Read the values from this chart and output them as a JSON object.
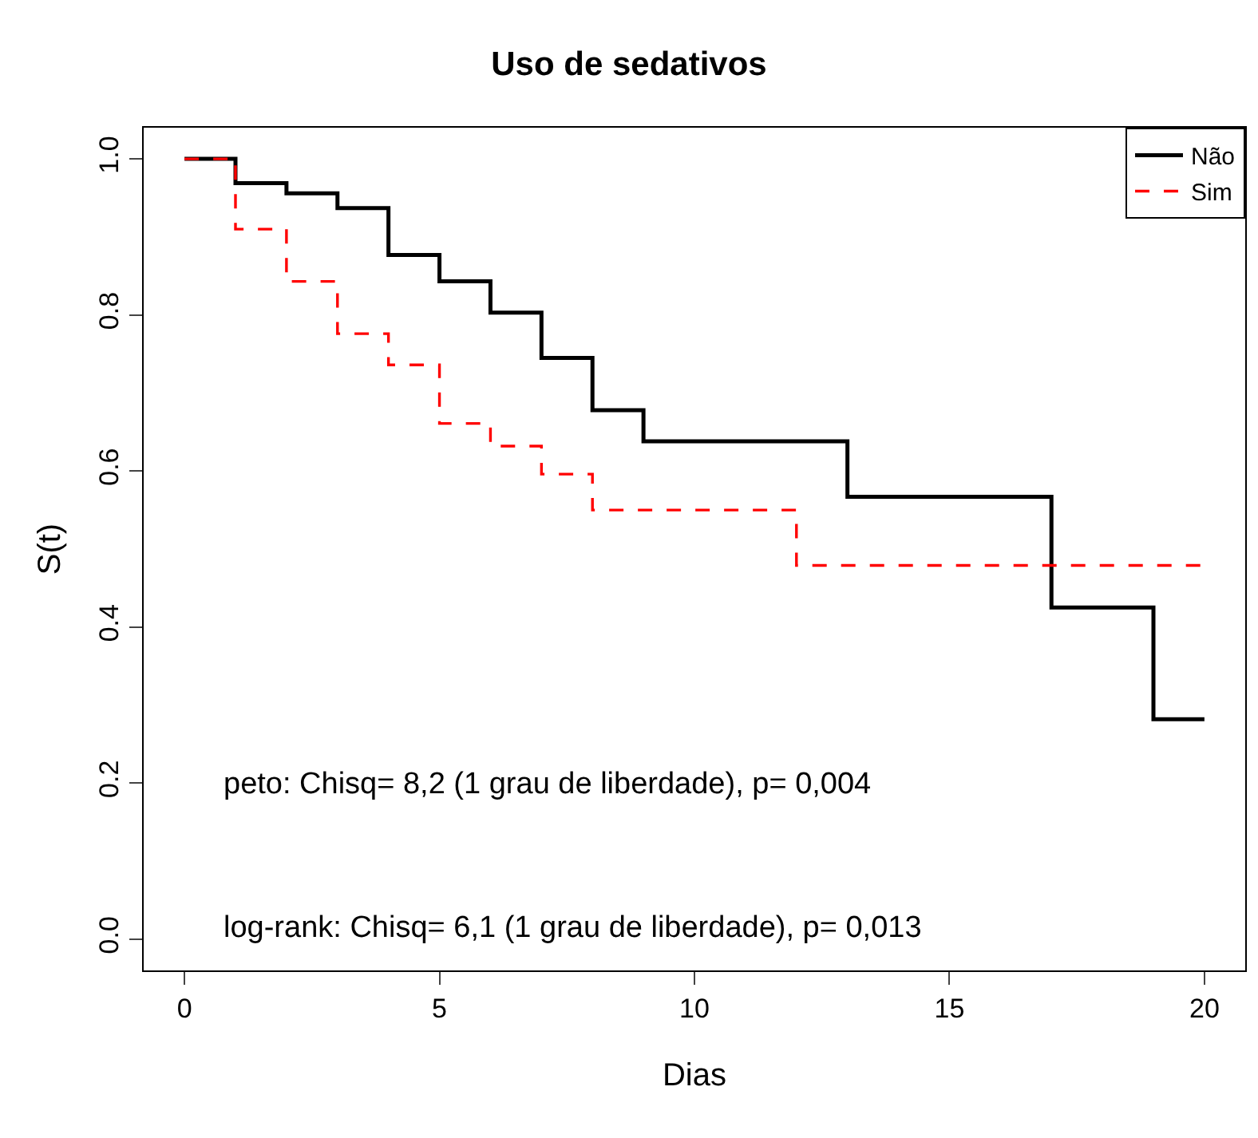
{
  "chart_data": {
    "type": "step",
    "title": "Uso de sedativos",
    "xlabel": "Dias",
    "ylabel": "S(t)",
    "xlim": [
      -0.8,
      20.8
    ],
    "xticks": [
      0,
      5,
      10,
      15,
      20
    ],
    "ylim": [
      -0.04,
      1.04
    ],
    "yticks": [
      {
        "value": 0,
        "label": "0.0"
      },
      0.2,
      0.4,
      0.6,
      0.8,
      {
        "value": 1,
        "label": "1.0"
      }
    ],
    "grid": false,
    "legend": "top right",
    "marker": "none",
    "annotations": [
      "peto: Chisq= 8,2 (1 grau de liberdade), p= 0,004",
      "log-rank: Chisq= 6,1 (1 grau de liberdade), p= 0,013"
    ],
    "series": [
      {
        "name": "Não",
        "color": "#000000",
        "line_style": "solid",
        "x": [
          0,
          1,
          2,
          3,
          4,
          5,
          6,
          7,
          8,
          9,
          13,
          17,
          19,
          20
        ],
        "values": [
          1.0,
          0.969,
          0.956,
          0.937,
          0.877,
          0.843,
          0.803,
          0.745,
          0.678,
          0.638,
          0.567,
          0.425,
          0.282,
          0.282
        ]
      },
      {
        "name": "Sim",
        "color": "#ff0000",
        "line_style": "dashed",
        "x": [
          0,
          1,
          2,
          3,
          4,
          5,
          6,
          7,
          8,
          12,
          20
        ],
        "values": [
          1.0,
          0.91,
          0.843,
          0.776,
          0.736,
          0.661,
          0.632,
          0.596,
          0.55,
          0.479,
          0.479
        ]
      }
    ]
  }
}
